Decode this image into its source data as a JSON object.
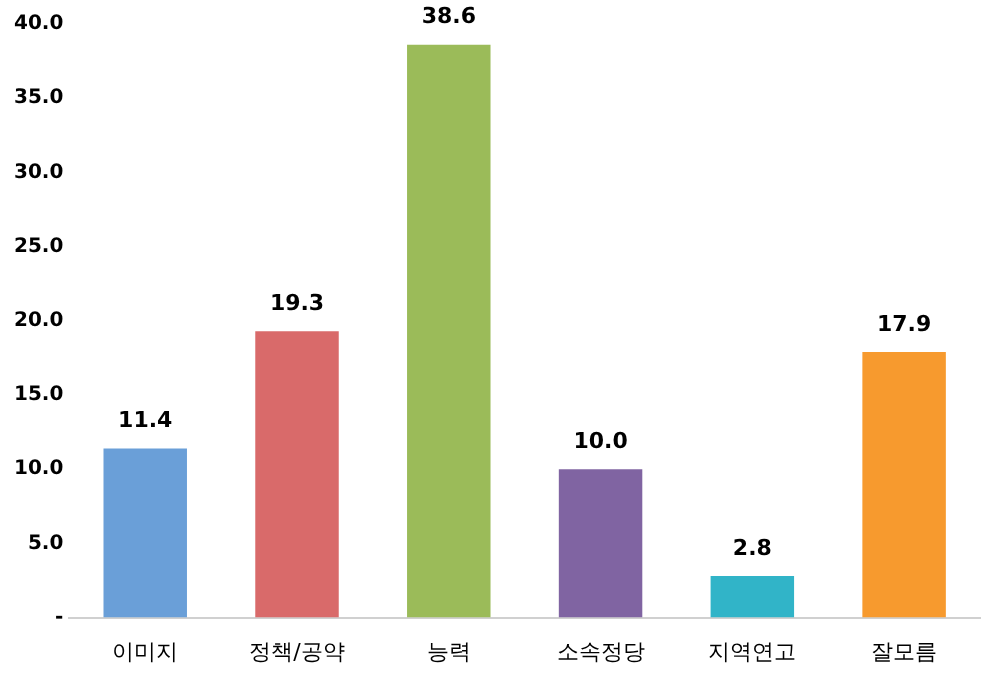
{
  "chart_data": {
    "type": "bar",
    "categories": [
      "이미지",
      "정책/공약",
      "능력",
      "소속정당",
      "지역연고",
      "잘모름"
    ],
    "values": [
      11.4,
      19.3,
      38.6,
      10.0,
      2.8,
      17.9
    ],
    "value_labels": [
      "11.4",
      "19.3",
      "38.6",
      "10.0",
      "2.8",
      "17.9"
    ],
    "colors": [
      "#6a9fd8",
      "#d96a6a",
      "#9bbb59",
      "#8064a2",
      "#31b4c8",
      "#f79a2e"
    ],
    "ylim": [
      0,
      40
    ],
    "yticks": [
      {
        "value": 0,
        "label": "-"
      },
      {
        "value": 5,
        "label": "5.0"
      },
      {
        "value": 10,
        "label": "10.0"
      },
      {
        "value": 15,
        "label": "15.0"
      },
      {
        "value": 20,
        "label": "20.0"
      },
      {
        "value": 25,
        "label": "25.0"
      },
      {
        "value": 30,
        "label": "30.0"
      },
      {
        "value": 35,
        "label": "35.0"
      },
      {
        "value": 40,
        "label": "40.0"
      }
    ],
    "grid": false,
    "legend": false
  }
}
